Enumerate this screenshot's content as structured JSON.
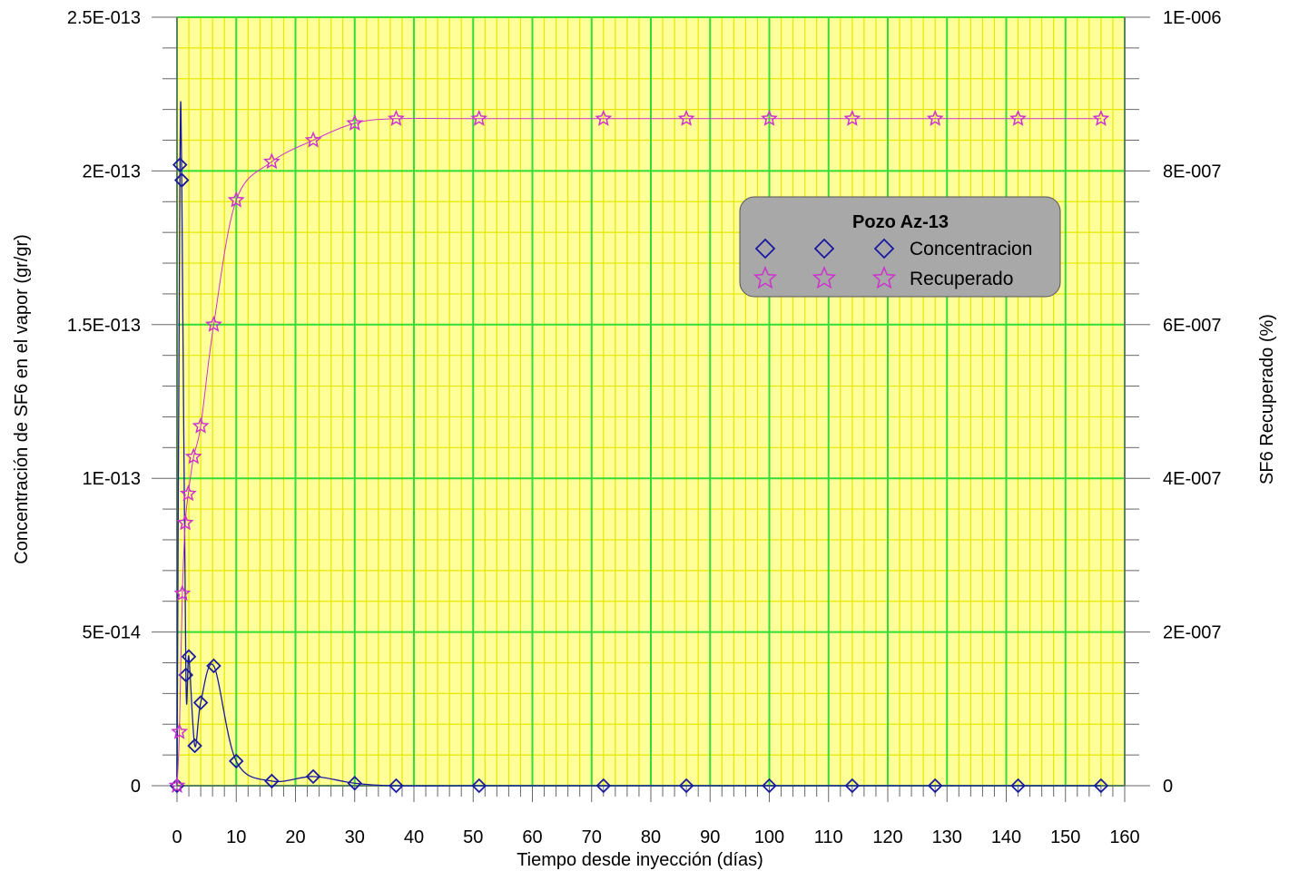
{
  "chart_data": {
    "type": "line",
    "xlabel": "Tiempo desde inyección (días)",
    "ylabel": "Concentración de SF6 en el vapor (gr/gr)",
    "y2label": "SF6 Recuperado (%)",
    "xlim": [
      0,
      160
    ],
    "ylim": [
      0,
      2.5e-13
    ],
    "y2lim": [
      0,
      1e-06
    ],
    "x_ticks": [
      "0",
      "10",
      "20",
      "30",
      "40",
      "50",
      "60",
      "70",
      "80",
      "90",
      "100",
      "110",
      "120",
      "130",
      "140",
      "150",
      "160"
    ],
    "y_ticks": [
      "0",
      "5E-014",
      "1E-013",
      "1.5E-013",
      "2E-013",
      "2.5E-013"
    ],
    "y2_ticks": [
      "0",
      "2E-007",
      "4E-007",
      "6E-007",
      "8E-007",
      "1E-006"
    ],
    "grid": true,
    "colors": {
      "plot_bg": "#ffff99",
      "minor_grid": "#e6e600",
      "major_grid": "#33dd33",
      "concentracion": "#1a1aa0",
      "recuperado": "#cc33cc",
      "legend_bg": "#a8a8a8"
    },
    "legend": {
      "title": "Pozo Az-13",
      "placement": "top-right",
      "entries": [
        "Concentracion",
        "Recuperado"
      ]
    },
    "series": [
      {
        "name": "Concentracion",
        "axis": "left",
        "marker": "diamond",
        "x": [
          0,
          0.5,
          0.8,
          1.5,
          2,
          3,
          4,
          6.2,
          10,
          16,
          23,
          30,
          37,
          51,
          72,
          86,
          100,
          114,
          128,
          142,
          156
        ],
        "y": [
          0,
          2.02e-13,
          1.97e-13,
          3.6e-14,
          4.2e-14,
          1.3e-14,
          2.7e-14,
          3.9e-14,
          8e-15,
          1.5e-15,
          3e-15,
          8e-16,
          0,
          0,
          0,
          0,
          0,
          0,
          0,
          0,
          0
        ]
      },
      {
        "name": "Recuperado",
        "axis": "right",
        "marker": "star",
        "x": [
          0,
          0.4,
          0.9,
          1.4,
          1.9,
          2.8,
          4,
          6.2,
          10,
          16,
          23,
          30,
          37,
          51,
          72,
          86,
          100,
          114,
          128,
          142,
          156
        ],
        "y": [
          0,
          7e-08,
          2.5e-07,
          3.42e-07,
          3.8e-07,
          4.28e-07,
          4.68e-07,
          6e-07,
          7.62e-07,
          8.12e-07,
          8.4e-07,
          8.62e-07,
          8.68e-07,
          8.68e-07,
          8.68e-07,
          8.68e-07,
          8.68e-07,
          8.68e-07,
          8.68e-07,
          8.68e-07,
          8.68e-07
        ]
      }
    ]
  }
}
